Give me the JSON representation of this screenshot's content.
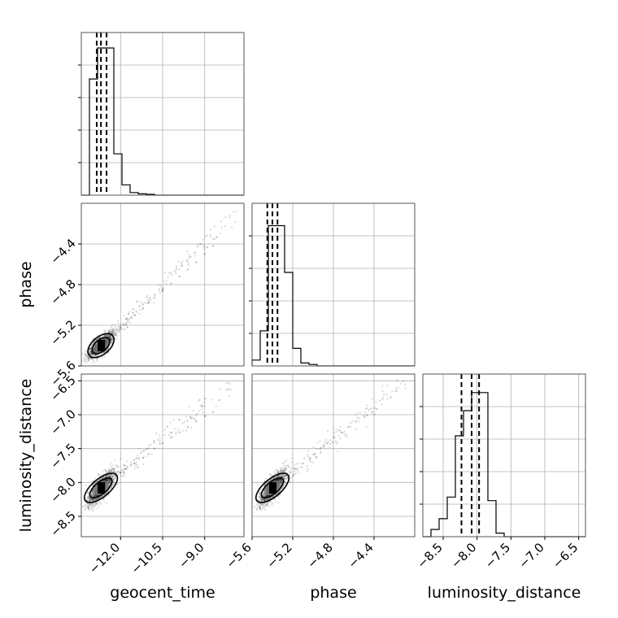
{
  "chart_data": {
    "type": "corner",
    "grid": true,
    "parameters": [
      "geocent_time",
      "phase",
      "luminosity_distance"
    ],
    "axis_labels": {
      "x": [
        "geocent_time",
        "phase",
        "luminosity_distance"
      ],
      "y": [
        "",
        "phase",
        "luminosity_distance"
      ]
    },
    "ranges": [
      [
        -13.4,
        -7.6
      ],
      [
        -5.6,
        -4.0
      ],
      [
        -8.8,
        -6.4
      ]
    ],
    "ticks": [
      [
        "−12.0",
        "−10.5",
        "−9.0"
      ],
      [
        "−5.6",
        "−5.2",
        "−4.8",
        "−4.4"
      ],
      [
        "−8.5",
        "−8.0",
        "−7.5",
        "−7.0",
        "−6.5"
      ]
    ],
    "tick_values": [
      [
        -12.0,
        -10.5,
        -9.0
      ],
      [
        -5.6,
        -5.2,
        -4.8,
        -4.4
      ],
      [
        -8.5,
        -8.0,
        -7.5,
        -7.0,
        -6.5
      ]
    ],
    "quantiles": [
      [
        -12.85,
        -12.7,
        -12.5
      ],
      [
        -5.45,
        -5.4,
        -5.35
      ],
      [
        -8.23,
        -8.08,
        -7.97
      ]
    ],
    "histograms": [
      {
        "edges_start": -13.4,
        "bin_width": 0.29,
        "counts": [
          0,
          45,
          57,
          57,
          16,
          4,
          1,
          0.5,
          0.3,
          0,
          0,
          0,
          0,
          0,
          0,
          0,
          0,
          0,
          0,
          0
        ],
        "ymax": 60
      },
      {
        "edges_start": -5.6,
        "bin_width": 0.08,
        "counts": [
          2,
          12,
          48,
          48,
          32,
          6,
          1,
          0.5,
          0,
          0,
          0,
          0,
          0,
          0,
          0,
          0,
          0,
          0,
          0,
          0
        ],
        "ymax": 53
      },
      {
        "edges_start": -8.8,
        "bin_width": 0.12,
        "counts": [
          0,
          2,
          5,
          11,
          28,
          35,
          40,
          40,
          10,
          1,
          0,
          0,
          0,
          0,
          0,
          0,
          0,
          0,
          0,
          0
        ],
        "ymax": 43
      }
    ],
    "scatter_samples": {
      "geocent_time": [
        -12.75,
        -12.6,
        -12.9,
        -12.5,
        -12.4,
        -12.2,
        -12.0,
        -11.8,
        -11.5,
        -11.2,
        -11.0,
        -10.8,
        -10.5,
        -10.2,
        -9.9,
        -9.6,
        -9.3,
        -9.0,
        -8.7,
        -12.95,
        -12.65,
        -12.3
      ],
      "phase": [
        -5.4,
        -5.38,
        -5.44,
        -5.36,
        -5.32,
        -5.27,
        -5.22,
        -5.18,
        -5.1,
        -5.03,
        -4.98,
        -4.93,
        -4.86,
        -4.79,
        -4.72,
        -4.65,
        -4.58,
        -4.5,
        -4.42,
        -5.46,
        -5.35,
        -5.3
      ],
      "luminosity_distance": [
        -8.1,
        -8.02,
        -8.15,
        -7.98,
        -7.95,
        -7.9,
        -7.85,
        -7.8,
        -7.72,
        -7.64,
        -7.58,
        -7.5,
        -7.42,
        -7.34,
        -7.26,
        -7.18,
        -7.1,
        -7.02,
        -6.96,
        -8.22,
        -8.05,
        -7.92
      ]
    }
  }
}
